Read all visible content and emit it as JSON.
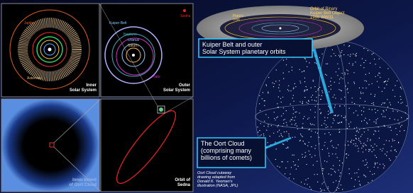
{
  "inner_panel": {
    "jupiter": "Jupiter",
    "asteroids": "Asteroids",
    "caption": [
      "Inner",
      "Solar System"
    ]
  },
  "outer_panel": {
    "kuiper_belt": "Kuiper Belt",
    "saturn": "Saturn",
    "uranus": "Uranus",
    "neptune": "Neptune",
    "pluto": "Pluto",
    "sedna": "Sedna",
    "caption": [
      "Outer",
      "Solar System"
    ]
  },
  "oort_inner_panel": {
    "caption": [
      "Inner extent",
      "of Oort Cloud"
    ]
  },
  "sedna_panel": {
    "caption": [
      "Orbit of",
      "Sedna"
    ]
  },
  "kuiper_inset": {
    "plutos_orbit": [
      "Pluto's",
      "orbit"
    ],
    "binary_orbit": [
      "Orbit of Binary",
      "Kuiper Belt Object",
      "1998 WW31"
    ],
    "caption": [
      "Kuiper Belt and outer",
      "Solar System planetary orbits"
    ]
  },
  "oort_cloud_label": [
    "The Oort Cloud",
    "(comprising many",
    "billions of comets)"
  ],
  "credit": [
    "Oort Cloud cutaway",
    "drawing adapted from",
    "Donald K. Yeoman's",
    "illustration (NASA, JPL)"
  ]
}
